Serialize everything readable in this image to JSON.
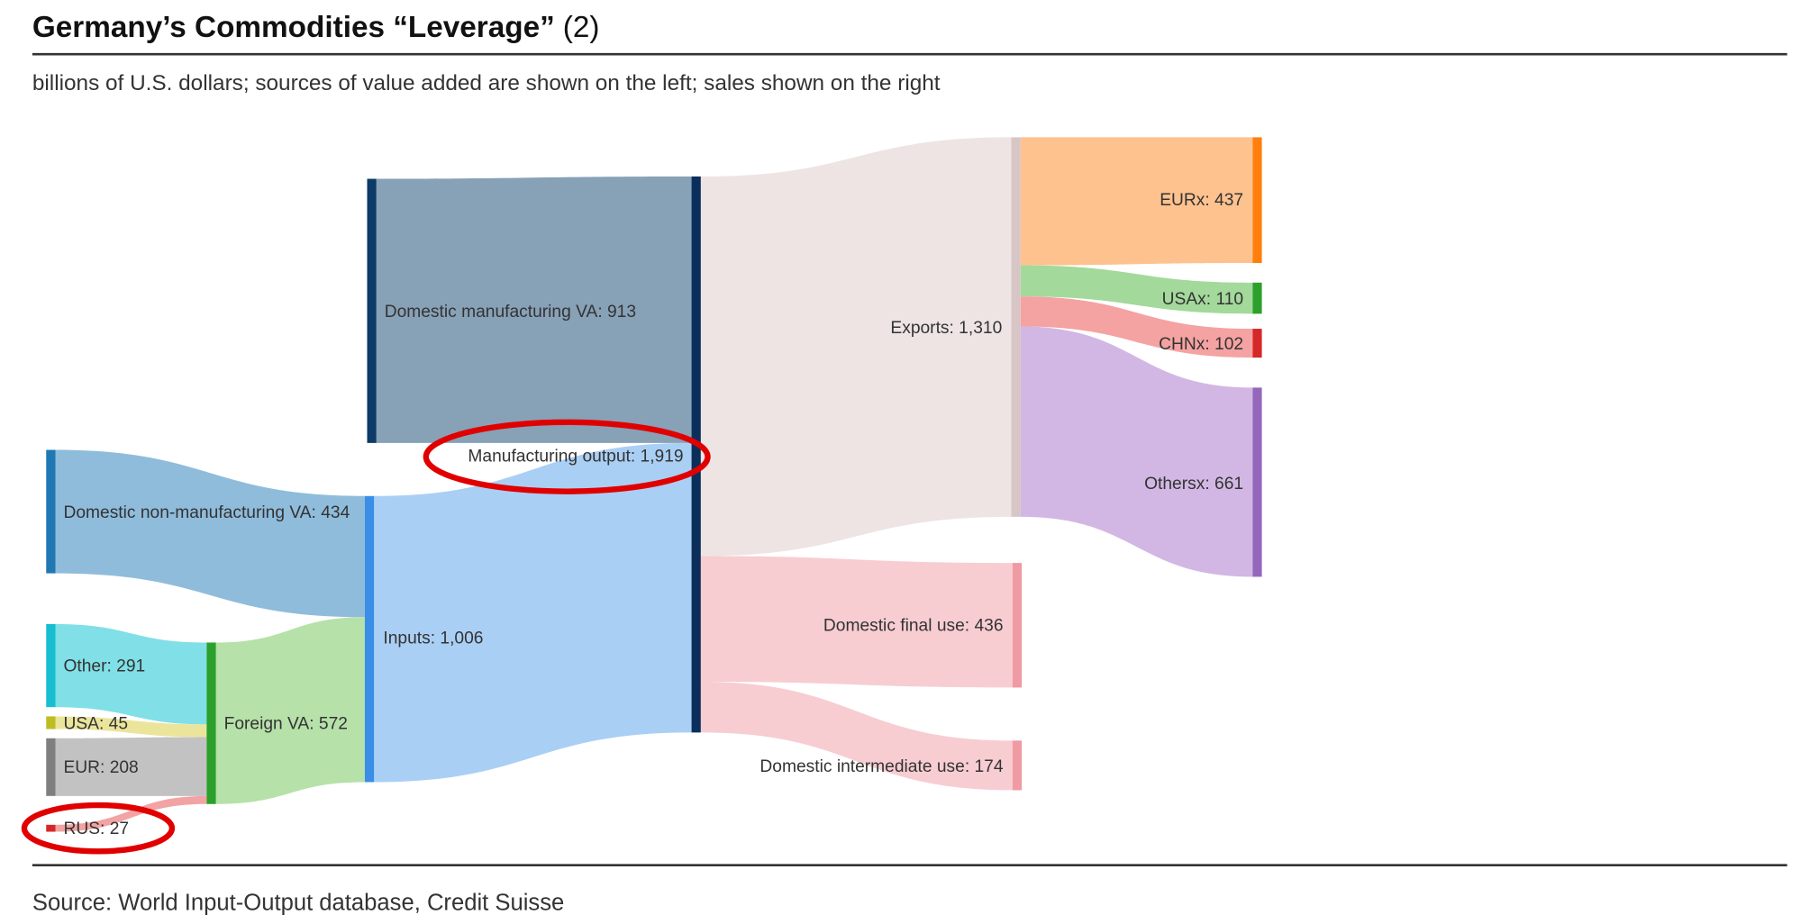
{
  "chart_data": {
    "type": "sankey",
    "title": "Germany’s Commodities “Leverage”",
    "title_suffix": "(2)",
    "subtitle": "billions of U.S. dollars; sources of value added are shown on the left; sales shown on the right",
    "source": "Source: World Input-Output database, Credit Suisse",
    "nodes": [
      {
        "id": "dnm",
        "label": "Domestic non-manufacturing VA: 434",
        "value": 434,
        "color": "#1f77b4"
      },
      {
        "id": "other",
        "label": "Other: 291",
        "value": 291,
        "color": "#17becf"
      },
      {
        "id": "usa",
        "label": "USA: 45",
        "value": 45,
        "color": "#bcbd22"
      },
      {
        "id": "eur",
        "label": "EUR: 208",
        "value": 208,
        "color": "#7f7f7f"
      },
      {
        "id": "rus",
        "label": "RUS: 27",
        "value": 27,
        "color": "#d62728"
      },
      {
        "id": "foreign",
        "label": "Foreign VA: 572",
        "value": 572,
        "color": "#2ca02c"
      },
      {
        "id": "inputs",
        "label": "Inputs: 1,006",
        "value": 1006,
        "color": "#3a8ee6"
      },
      {
        "id": "dmva",
        "label": "Domestic manufacturing VA: 913",
        "value": 913,
        "color": "#0d3a66"
      },
      {
        "id": "mo",
        "label": "Manufacturing output: 1,919",
        "value": 1919,
        "color": "#0b2f5a"
      },
      {
        "id": "exports",
        "label": "Exports: 1,310",
        "value": 1310,
        "color": "#d8c6c6"
      },
      {
        "id": "dfu",
        "label": "Domestic final use: 436",
        "value": 436,
        "color": "#f09aa3"
      },
      {
        "id": "diu",
        "label": "Domestic intermediate use: 174",
        "value": 174,
        "color": "#f09aa3"
      },
      {
        "id": "eurx",
        "label": "EURx: 437",
        "value": 437,
        "color": "#ff7f0e"
      },
      {
        "id": "usax",
        "label": "USAx: 110",
        "value": 110,
        "color": "#2ca02c"
      },
      {
        "id": "chnx",
        "label": "CHNx: 102",
        "value": 102,
        "color": "#d62728"
      },
      {
        "id": "othersx",
        "label": "Othersx: 661",
        "value": 661,
        "color": "#9467bd"
      }
    ],
    "links": [
      {
        "source": "dnm",
        "target": "inputs",
        "value": 434,
        "color": "#8fbcdb"
      },
      {
        "source": "other",
        "target": "foreign",
        "value": 291,
        "color": "#80dfe7"
      },
      {
        "source": "usa",
        "target": "foreign",
        "value": 45,
        "color": "#ebe59c"
      },
      {
        "source": "eur",
        "target": "foreign",
        "value": 208,
        "color": "#c2c2c2"
      },
      {
        "source": "rus",
        "target": "foreign",
        "value": 27,
        "color": "#f2a3a3"
      },
      {
        "source": "foreign",
        "target": "inputs",
        "value": 572,
        "color": "#b6e1a9"
      },
      {
        "source": "dmva",
        "target": "mo",
        "value": 913,
        "color": "#87a1b7"
      },
      {
        "source": "inputs",
        "target": "mo",
        "value": 1006,
        "color": "#aacff5"
      },
      {
        "source": "mo",
        "target": "exports",
        "value": 1310,
        "color": "#eee4e4"
      },
      {
        "source": "mo",
        "target": "dfu",
        "value": 436,
        "color": "#f7cdd2"
      },
      {
        "source": "mo",
        "target": "diu",
        "value": 174,
        "color": "#f7cdd2"
      },
      {
        "source": "exports",
        "target": "eurx",
        "value": 437,
        "color": "#fec28f"
      },
      {
        "source": "exports",
        "target": "usax",
        "value": 110,
        "color": "#a3d99b"
      },
      {
        "source": "exports",
        "target": "chnx",
        "value": 102,
        "color": "#f5a2a2"
      },
      {
        "source": "exports",
        "target": "othersx",
        "value": 661,
        "color": "#d2b7e4"
      }
    ],
    "highlighted": [
      "mo",
      "rus"
    ],
    "highlight_color": "#e00000"
  }
}
